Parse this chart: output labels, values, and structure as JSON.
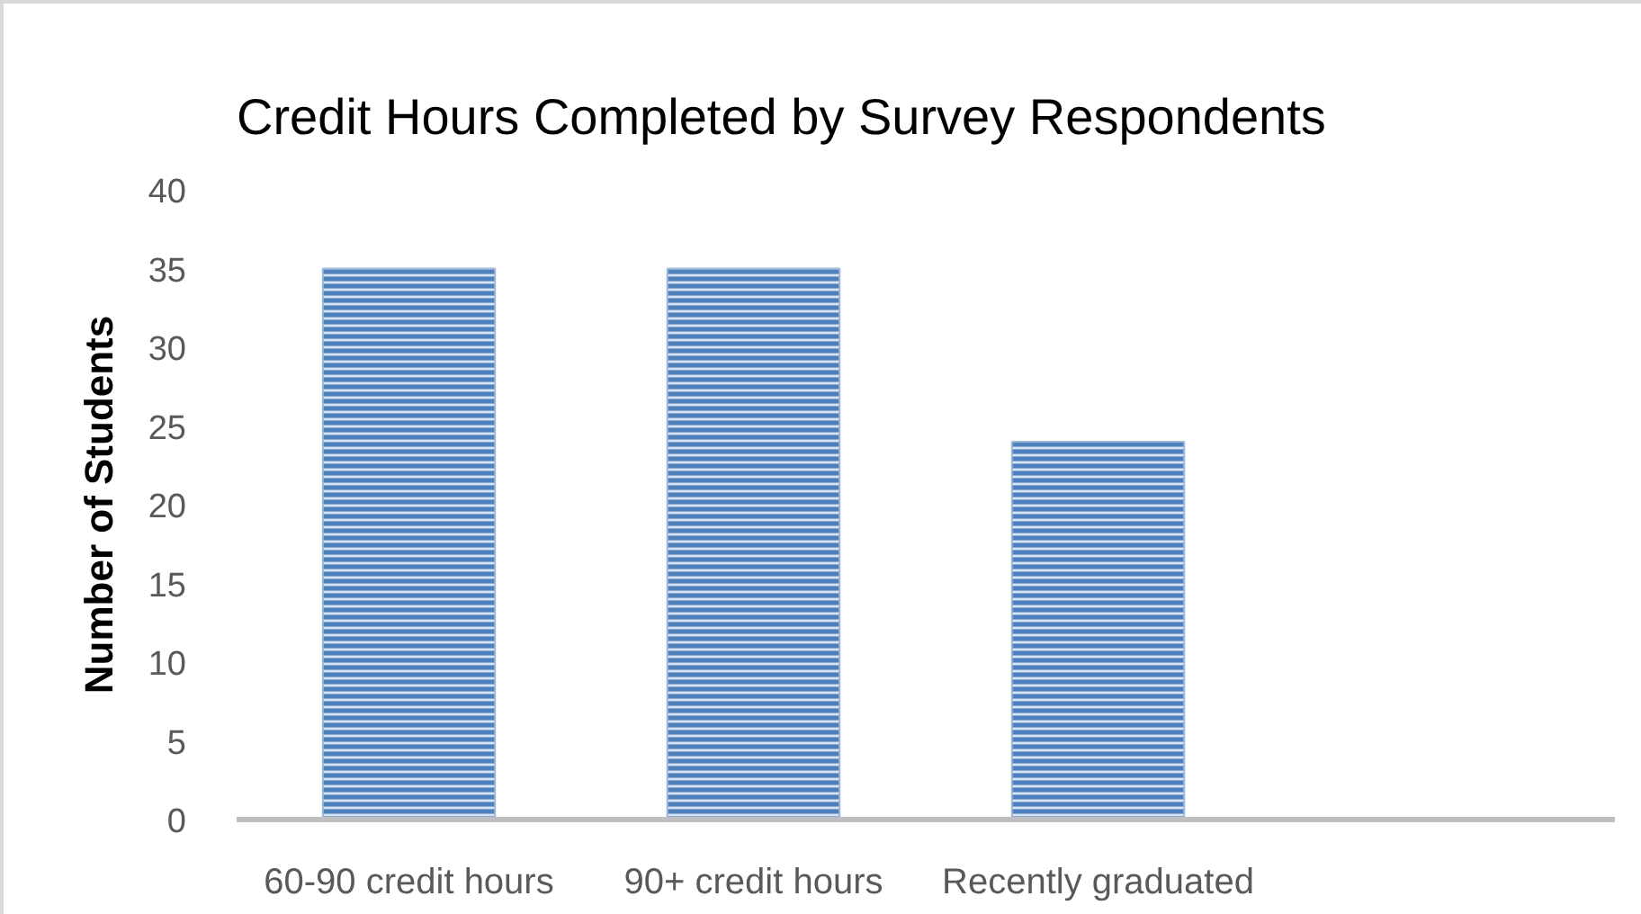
{
  "chart_data": {
    "type": "bar",
    "title": "Credit Hours Completed by Survey Respondents",
    "ylabel": "Number of Students",
    "categories": [
      "60-90 credit hours",
      "90+ credit hours",
      "Recently graduated",
      null
    ],
    "values": [
      35,
      35,
      24,
      null
    ],
    "color": "#4f81bd",
    "ylim": [
      0,
      40
    ],
    "yticks": [
      0,
      5,
      10,
      15,
      20,
      25,
      30,
      35,
      40
    ]
  }
}
